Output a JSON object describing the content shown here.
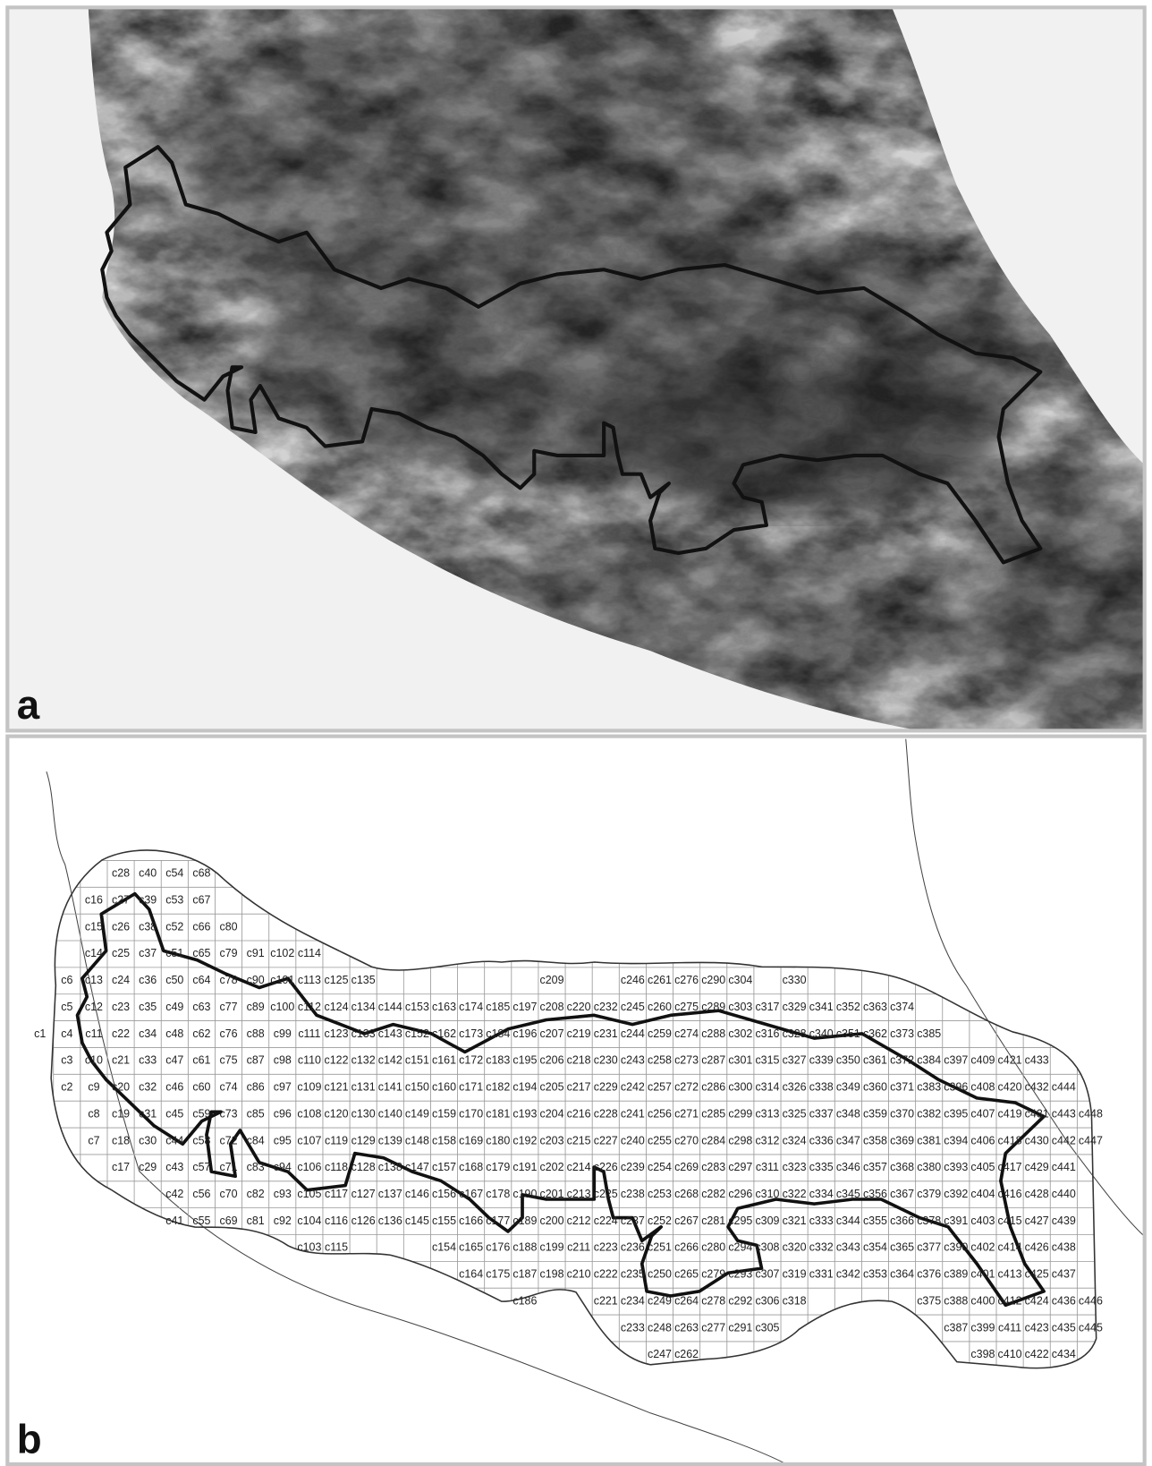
{
  "panel_a": {
    "label": "a"
  },
  "panel_b": {
    "label": "b",
    "grid_columns": [
      [
        null,
        null,
        null,
        null,
        null,
        null,
        "c1"
      ],
      [
        null,
        null,
        null,
        null,
        "c6",
        "c5",
        "c4",
        "c3",
        "c2"
      ],
      [
        null,
        "c16",
        "c15",
        "c14",
        "c13",
        "c12",
        "c11",
        "c10",
        "c9",
        "c8",
        "c7"
      ],
      [
        "c28",
        "c27",
        "c26",
        "c25",
        "c24",
        "c23",
        "c22",
        "c21",
        "c20",
        "c19",
        "c18",
        "c17"
      ],
      [
        "c40",
        "c39",
        "c38",
        "c37",
        "c36",
        "c35",
        "c34",
        "c33",
        "c32",
        "c31",
        "c30",
        "c29"
      ],
      [
        "c54",
        "c53",
        "c52",
        "c51",
        "c50",
        "c49",
        "c48",
        "c47",
        "c46",
        "c45",
        "c44",
        "c43",
        "c42",
        "c41"
      ],
      [
        "c68",
        "c67",
        "c66",
        "c65",
        "c64",
        "c63",
        "c62",
        "c61",
        "c60",
        "c59",
        "c58",
        "c57",
        "c56",
        "c55"
      ],
      [
        null,
        null,
        "c80",
        "c79",
        "c78",
        "c77",
        "c76",
        "c75",
        "c74",
        "c73",
        "c72",
        "c71",
        "c70",
        "c69"
      ],
      [
        null,
        null,
        null,
        "c91",
        "c90",
        "c89",
        "c88",
        "c87",
        "c86",
        "c85",
        "c84",
        "c83",
        "c82",
        "c81"
      ],
      [
        null,
        null,
        null,
        "c102",
        "c101",
        "c100",
        "c99",
        "c98",
        "c97",
        "c96",
        "c95",
        "c94",
        "c93",
        "c92"
      ],
      [
        null,
        null,
        null,
        "c114",
        "c113",
        "c112",
        "c111",
        "c110",
        "c109",
        "c108",
        "c107",
        "c106",
        "c105",
        "c104",
        "c103"
      ],
      [
        null,
        null,
        null,
        null,
        "c125",
        "c124",
        "c123",
        "c122",
        "c121",
        "c120",
        "c119",
        "c118",
        "c117",
        "c116",
        "c115"
      ],
      [
        null,
        null,
        null,
        null,
        "c135",
        "c134",
        "c133",
        "c132",
        "c131",
        "c130",
        "c129",
        "c128",
        "c127",
        "c126"
      ],
      [
        null,
        null,
        null,
        null,
        null,
        "c144",
        "c143",
        "c142",
        "c141",
        "c140",
        "c139",
        "c138",
        "c137",
        "c136"
      ],
      [
        null,
        null,
        null,
        null,
        null,
        "c153",
        "c152",
        "c151",
        "c150",
        "c149",
        "c148",
        "c147",
        "c146",
        "c145"
      ],
      [
        null,
        null,
        null,
        null,
        null,
        "c163",
        "c162",
        "c161",
        "c160",
        "c159",
        "c158",
        "c157",
        "c156",
        "c155",
        "c154"
      ],
      [
        null,
        null,
        null,
        null,
        null,
        "c174",
        "c173",
        "c172",
        "c171",
        "c170",
        "c169",
        "c168",
        "c167",
        "c166",
        "c165",
        "c164"
      ],
      [
        null,
        null,
        null,
        null,
        null,
        "c185",
        "c184",
        "c183",
        "c182",
        "c181",
        "c180",
        "c179",
        "c178",
        "c177",
        "c176",
        "c175"
      ],
      [
        null,
        null,
        null,
        null,
        null,
        "c197",
        "c196",
        "c195",
        "c194",
        "c193",
        "c192",
        "c191",
        "c190",
        "c189",
        "c188",
        "c187",
        "c186"
      ],
      [
        null,
        null,
        null,
        null,
        "c209",
        "c208",
        "c207",
        "c206",
        "c205",
        "c204",
        "c203",
        "c202",
        "c201",
        "c200",
        "c199",
        "c198"
      ],
      [
        null,
        null,
        null,
        null,
        null,
        "c220",
        "c219",
        "c218",
        "c217",
        "c216",
        "c215",
        "c214",
        "c213",
        "c212",
        "c211",
        "c210"
      ],
      [
        null,
        null,
        null,
        null,
        null,
        "c232",
        "c231",
        "c230",
        "c229",
        "c228",
        "c227",
        "c226",
        "c225",
        "c224",
        "c223",
        "c222",
        "c221"
      ],
      [
        null,
        null,
        null,
        null,
        "c246",
        "c245",
        "c244",
        "c243",
        "c242",
        "c241",
        "c240",
        "c239",
        "c238",
        "c237",
        "c236",
        "c235",
        "c234",
        "c233"
      ],
      [
        null,
        null,
        null,
        null,
        "c261",
        "c260",
        "c259",
        "c258",
        "c257",
        "c256",
        "c255",
        "c254",
        "c253",
        "c252",
        "c251",
        "c250",
        "c249",
        "c248",
        "c247"
      ],
      [
        null,
        null,
        null,
        null,
        "c276",
        "c275",
        "c274",
        "c273",
        "c272",
        "c271",
        "c270",
        "c269",
        "c268",
        "c267",
        "c266",
        "c265",
        "c264",
        "c263",
        "c262"
      ],
      [
        null,
        null,
        null,
        null,
        "c290",
        "c289",
        "c288",
        "c287",
        "c286",
        "c285",
        "c284",
        "c283",
        "c282",
        "c281",
        "c280",
        "c279",
        "c278",
        "c277"
      ],
      [
        null,
        null,
        null,
        null,
        "c304",
        "c303",
        "c302",
        "c301",
        "c300",
        "c299",
        "c298",
        "c297",
        "c296",
        "c295",
        "c294",
        "c293",
        "c292",
        "c291"
      ],
      [
        null,
        null,
        null,
        null,
        null,
        "c317",
        "c316",
        "c315",
        "c314",
        "c313",
        "c312",
        "c311",
        "c310",
        "c309",
        "c308",
        "c307",
        "c306",
        "c305"
      ],
      [
        null,
        null,
        null,
        null,
        "c330",
        "c329",
        "c328",
        "c327",
        "c326",
        "c325",
        "c324",
        "c323",
        "c322",
        "c321",
        "c320",
        "c319",
        "c318"
      ],
      [
        null,
        null,
        null,
        null,
        null,
        "c341",
        "c340",
        "c339",
        "c338",
        "c337",
        "c336",
        "c335",
        "c334",
        "c333",
        "c332",
        "c331"
      ],
      [
        null,
        null,
        null,
        null,
        null,
        "c352",
        "c351",
        "c350",
        "c349",
        "c348",
        "c347",
        "c346",
        "c345",
        "c344",
        "c343",
        "c342"
      ],
      [
        null,
        null,
        null,
        null,
        null,
        "c363",
        "c362",
        "c361",
        "c360",
        "c359",
        "c358",
        "c357",
        "c356",
        "c355",
        "c354",
        "c353"
      ],
      [
        null,
        null,
        null,
        null,
        null,
        "c374",
        "c373",
        "c372",
        "c371",
        "c370",
        "c369",
        "c368",
        "c367",
        "c366",
        "c365",
        "c364"
      ],
      [
        null,
        null,
        null,
        null,
        null,
        null,
        "c385",
        "c384",
        "c383",
        "c382",
        "c381",
        "c380",
        "c379",
        "c378",
        "c377",
        "c376",
        "c375"
      ],
      [
        null,
        null,
        null,
        null,
        null,
        null,
        null,
        "c397",
        "c396",
        "c395",
        "c394",
        "c393",
        "c392",
        "c391",
        "c390",
        "c389",
        "c388",
        "c387"
      ],
      [
        null,
        null,
        null,
        null,
        null,
        null,
        null,
        "c409",
        "c408",
        "c407",
        "c406",
        "c405",
        "c404",
        "c403",
        "c402",
        "c401",
        "c400",
        "c399",
        "c398"
      ],
      [
        null,
        null,
        null,
        null,
        null,
        null,
        null,
        "c421",
        "c420",
        "c419",
        "c418",
        "c417",
        "c416",
        "c415",
        "c414",
        "c413",
        "c412",
        "c411",
        "c410"
      ],
      [
        null,
        null,
        null,
        null,
        null,
        null,
        null,
        "c433",
        "c432",
        "c431",
        "c430",
        "c429",
        "c428",
        "c427",
        "c426",
        "c425",
        "c424",
        "c423",
        "c422"
      ],
      [
        null,
        null,
        null,
        null,
        null,
        null,
        null,
        null,
        "c444",
        "c443",
        "c442",
        "c441",
        "c440",
        "c439",
        "c438",
        "c437",
        "c436",
        "c435",
        "c434"
      ],
      [
        null,
        null,
        null,
        null,
        null,
        null,
        null,
        null,
        null,
        "c448",
        "c447",
        null,
        null,
        null,
        null,
        null,
        "c446",
        "c445"
      ]
    ]
  }
}
